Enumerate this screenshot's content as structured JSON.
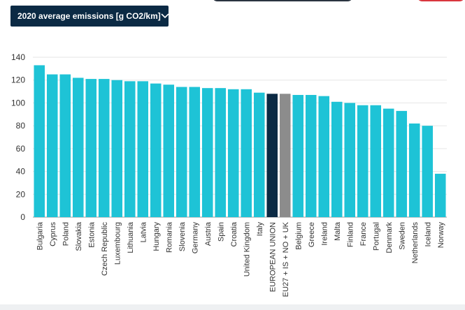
{
  "controls": {
    "metric_select": {
      "selected": "2020 average emissions [g CO2/km]",
      "icon": "chevron-down-icon"
    }
  },
  "colors": {
    "bar_default": "#1ec3d6",
    "bar_eu": "#0b2a44",
    "bar_eu27": "#8c8c8c",
    "grid": "#e6e6e6",
    "text": "#333333"
  },
  "chart_data": {
    "type": "bar",
    "title": "",
    "xlabel": "",
    "ylabel": "",
    "ylim": [
      0,
      140
    ],
    "yticks": [
      0,
      20,
      40,
      60,
      80,
      100,
      120,
      140
    ],
    "grid": true,
    "categories": [
      "Bulgaria",
      "Cyprus",
      "Poland",
      "Slovakia",
      "Estonia",
      "Czech Republic",
      "Luxembourg",
      "Lithuania",
      "Latvia",
      "Hungary",
      "Romania",
      "Slovenia",
      "Germany",
      "Austria",
      "Spain",
      "Croatia",
      "United Kingdom",
      "Italy",
      "EUROPEAN UNION",
      "EU27 + IS + NO + UK",
      "Belgium",
      "Greece",
      "Ireland",
      "Malta",
      "Finland",
      "France",
      "Portugal",
      "Denmark",
      "Sweden",
      "Netherlands",
      "Iceland",
      "Norway"
    ],
    "values": [
      133,
      125,
      125,
      122,
      121,
      121,
      120,
      119,
      119,
      117,
      116,
      114,
      114,
      113,
      113,
      112,
      112,
      109,
      108,
      108,
      107,
      107,
      106,
      101,
      100,
      98,
      98,
      95,
      93,
      82,
      80,
      38
    ],
    "highlight": {
      "EUROPEAN UNION": "bar_eu",
      "EU27 + IS + NO + UK": "bar_eu27"
    }
  }
}
